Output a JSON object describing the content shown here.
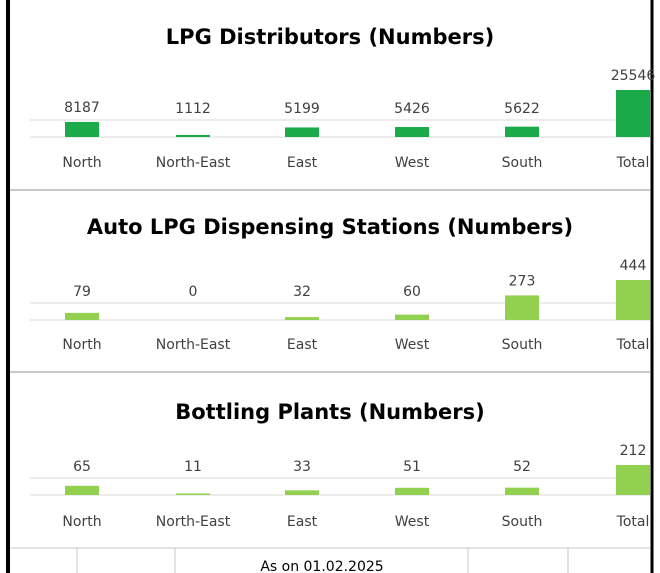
{
  "chart_data": [
    {
      "type": "bar",
      "title": "LPG Distributors (Numbers)",
      "categories": [
        "North",
        "North-East",
        "East",
        "West",
        "South",
        "Total"
      ],
      "values": [
        8187,
        1112,
        5199,
        5426,
        5622,
        25546
      ],
      "color": "#1aaa4a"
    },
    {
      "type": "bar",
      "title": "Auto LPG Dispensing Stations (Numbers)",
      "categories": [
        "North",
        "North-East",
        "East",
        "West",
        "South",
        "Total"
      ],
      "values": [
        79,
        0,
        32,
        60,
        273,
        444
      ],
      "color": "#92d050"
    },
    {
      "type": "bar",
      "title": "Bottling Plants (Numbers)",
      "categories": [
        "North",
        "North-East",
        "East",
        "West",
        "South",
        "Total"
      ],
      "values": [
        65,
        11,
        33,
        51,
        52,
        212
      ],
      "color": "#92d050"
    }
  ],
  "footnote": "As on 01.02.2025"
}
